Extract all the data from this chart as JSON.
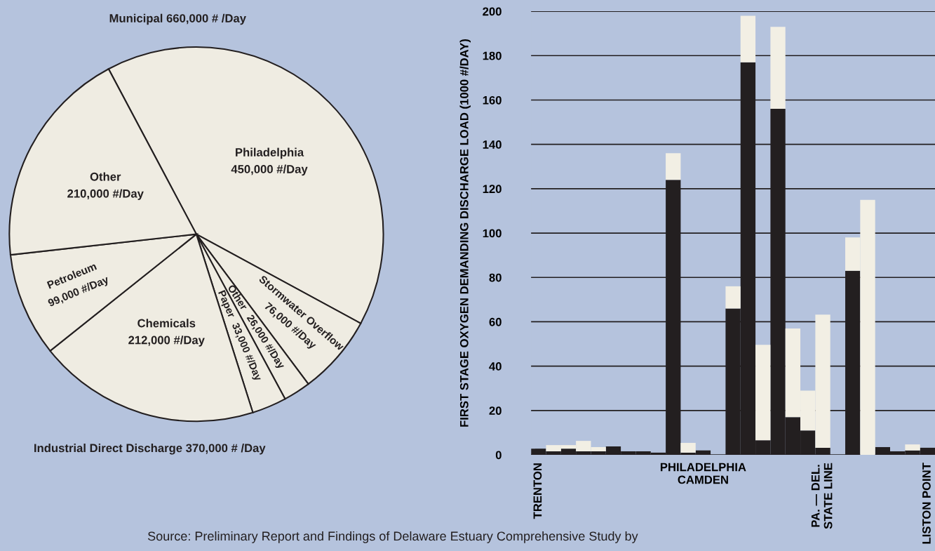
{
  "chart_data": [
    {
      "type": "pie",
      "categories": [
        "Philadelphia",
        "Stormwater Overflow",
        "Other",
        "Paper",
        "Chemicals",
        "Petroleum",
        "Other"
      ],
      "values": [
        450000,
        76000,
        26000,
        33000,
        212000,
        99000,
        210000
      ],
      "value_labels": [
        "450,000 #/Day",
        "76,000 #/Day",
        "26,000 #/Day",
        "33,000 #/Day",
        "212,000 #/Day",
        "99,000 #/Day",
        "210,000 #/Day"
      ],
      "colors": [
        "#efece2",
        "#efece2",
        "#efece2",
        "#efece2",
        "#efece2",
        "#efece2",
        "#efece2"
      ],
      "annotations": [
        "Municipal 660,000 # /Day",
        "Industrial Direct Discharge 370,000 # /Day",
        "Source: Preliminary Report and Findings of Delaware Estuary Comprehensive Study by"
      ]
    },
    {
      "type": "bar",
      "stacked": true,
      "categories": [
        "TRENTON",
        null,
        null,
        null,
        null,
        null,
        null,
        null,
        null,
        null,
        null,
        "PHILADELPHIA\nCAMDEN",
        null,
        null,
        null,
        null,
        null,
        null,
        null,
        "PA. — DEL.\nSTATE LINE",
        null,
        null,
        null,
        null,
        null,
        null,
        "LISTON POINT"
      ],
      "series": [
        {
          "color": "#231f20",
          "values": [
            2.8,
            1.6,
            2.8,
            1.6,
            1.6,
            3.8,
            1.6,
            1.6,
            1.0,
            124,
            1.0,
            2,
            null,
            66,
            177,
            6.6,
            156,
            17,
            11,
            3.2,
            null,
            83,
            0,
            3.5,
            1.6,
            2,
            3.2
          ]
        },
        {
          "color": "#f2efe4",
          "values": [
            0,
            2.8,
            1.6,
            4.7,
            1.9,
            0,
            0,
            0,
            0,
            12,
            4.4,
            0,
            null,
            10,
            21,
            43,
            37,
            40,
            18,
            60,
            null,
            15,
            115,
            0,
            0,
            2.7,
            0
          ]
        }
      ],
      "ylabel": "FIRST STAGE OXYGEN DEMANDING DISCHARGE LOAD (1000 #/DAY)",
      "ylim": [
        0,
        200
      ],
      "yticks": [
        0,
        20,
        40,
        60,
        80,
        100,
        120,
        140,
        160,
        180,
        200
      ],
      "grid": "y"
    }
  ]
}
